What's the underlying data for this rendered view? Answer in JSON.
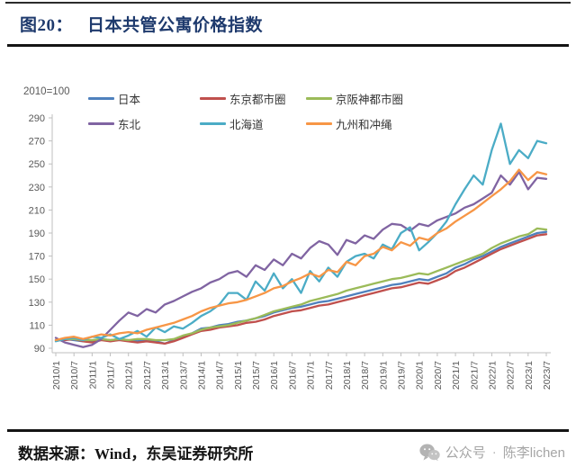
{
  "header": {
    "title_prefix": "图20：",
    "title": "日本共管公寓价格指数"
  },
  "footer": {
    "source": "数据来源：Wind，东吴证券研究所",
    "wechat_label": "公众号",
    "separator": "·",
    "account": "陈李lichen"
  },
  "colors": {
    "title": "#1e3a6d",
    "divider": "#141414",
    "axis": "#bfbfbf",
    "tick_label": "#595959",
    "footer_text": "#141414",
    "wechat_gray": "#a6a6a6"
  },
  "chart_data": {
    "type": "line",
    "title": "",
    "unit_label": "2010=100",
    "xlabel": "",
    "ylabel": "",
    "ylim": [
      90,
      290
    ],
    "yticks": [
      290,
      270,
      250,
      230,
      210,
      190,
      170,
      150,
      130,
      110,
      90
    ],
    "grid": false,
    "legend_position": "top",
    "xtick_labels": [
      "2010/1",
      "2010/7",
      "2011/1",
      "2011/7",
      "2012/1",
      "2012/7",
      "2013/1",
      "2013/7",
      "2014/1",
      "2014/7",
      "2015/1",
      "2015/7",
      "2016/1",
      "2016/7",
      "2017/1",
      "2017/7",
      "2018/1",
      "2018/7",
      "2019/1",
      "2019/7",
      "2020/1",
      "2020/7",
      "2021/1",
      "2021/7",
      "2022/1",
      "2022/7",
      "2023/1",
      "2023/7"
    ],
    "dates": [
      "2010/1",
      "2010/4",
      "2010/7",
      "2010/10",
      "2011/1",
      "2011/4",
      "2011/7",
      "2011/10",
      "2012/1",
      "2012/4",
      "2012/7",
      "2012/10",
      "2013/1",
      "2013/4",
      "2013/7",
      "2013/10",
      "2014/1",
      "2014/4",
      "2014/7",
      "2014/10",
      "2015/1",
      "2015/4",
      "2015/7",
      "2015/10",
      "2016/1",
      "2016/4",
      "2016/7",
      "2016/10",
      "2017/1",
      "2017/4",
      "2017/7",
      "2017/10",
      "2018/1",
      "2018/4",
      "2018/7",
      "2018/10",
      "2019/1",
      "2019/4",
      "2019/7",
      "2019/10",
      "2020/1",
      "2020/4",
      "2020/7",
      "2020/10",
      "2021/1",
      "2021/4",
      "2021/7",
      "2021/10",
      "2022/1",
      "2022/4",
      "2022/7",
      "2022/10",
      "2023/1",
      "2023/4",
      "2023/7"
    ],
    "series": [
      {
        "name": "日本",
        "color": "#4F81BD",
        "values": [
          97,
          98,
          97,
          96,
          96,
          98,
          97,
          98,
          97,
          96,
          97,
          96,
          94,
          97,
          100,
          103,
          107,
          108,
          110,
          111,
          113,
          114,
          116,
          118,
          121,
          123,
          125,
          126,
          128,
          130,
          131,
          133,
          135,
          137,
          139,
          141,
          143,
          145,
          146,
          148,
          150,
          149,
          152,
          155,
          160,
          163,
          167,
          170,
          174,
          178,
          181,
          184,
          187,
          190,
          191
        ]
      },
      {
        "name": "东京都市圈",
        "color": "#C0504D",
        "values": [
          97,
          97,
          98,
          96,
          95,
          97,
          96,
          97,
          96,
          95,
          96,
          95,
          94,
          96,
          99,
          102,
          105,
          106,
          108,
          109,
          110,
          112,
          113,
          115,
          118,
          120,
          122,
          123,
          125,
          127,
          128,
          130,
          132,
          134,
          136,
          138,
          140,
          142,
          143,
          145,
          147,
          146,
          149,
          152,
          157,
          160,
          164,
          168,
          172,
          176,
          179,
          182,
          185,
          188,
          189
        ]
      },
      {
        "name": "京阪神都市圈",
        "color": "#9BBB59",
        "values": [
          97,
          98,
          98,
          97,
          97,
          98,
          97,
          98,
          97,
          98,
          98,
          97,
          97,
          98,
          101,
          103,
          106,
          108,
          109,
          110,
          112,
          114,
          116,
          119,
          122,
          124,
          126,
          128,
          131,
          133,
          135,
          137,
          140,
          142,
          144,
          146,
          148,
          150,
          151,
          153,
          155,
          154,
          157,
          160,
          163,
          166,
          169,
          172,
          177,
          181,
          184,
          187,
          189,
          194,
          193
        ]
      },
      {
        "name": "东北",
        "color": "#8064A2",
        "values": [
          99,
          95,
          93,
          91,
          93,
          98,
          106,
          114,
          121,
          118,
          124,
          121,
          128,
          131,
          135,
          139,
          142,
          147,
          150,
          155,
          157,
          152,
          162,
          158,
          167,
          162,
          172,
          168,
          177,
          183,
          180,
          171,
          184,
          181,
          188,
          185,
          193,
          198,
          197,
          192,
          198,
          196,
          201,
          204,
          207,
          212,
          215,
          220,
          225,
          240,
          232,
          243,
          228,
          238,
          237
        ]
      },
      {
        "name": "北海道",
        "color": "#4BACC6",
        "values": [
          96,
          98,
          99,
          97,
          100,
          99,
          102,
          98,
          101,
          105,
          100,
          108,
          104,
          109,
          107,
          112,
          118,
          122,
          128,
          138,
          138,
          132,
          148,
          140,
          155,
          142,
          150,
          138,
          157,
          148,
          160,
          152,
          165,
          170,
          172,
          168,
          180,
          176,
          190,
          195,
          175,
          182,
          190,
          200,
          215,
          228,
          240,
          232,
          262,
          285,
          250,
          262,
          255,
          270,
          268
        ]
      },
      {
        "name": "九州和冲绳",
        "color": "#F79646",
        "values": [
          97,
          99,
          100,
          98,
          100,
          102,
          101,
          103,
          104,
          103,
          106,
          108,
          110,
          112,
          115,
          118,
          122,
          125,
          127,
          129,
          130,
          132,
          135,
          138,
          142,
          144,
          148,
          151,
          155,
          152,
          158,
          156,
          165,
          162,
          170,
          172,
          178,
          175,
          182,
          179,
          186,
          184,
          190,
          194,
          200,
          205,
          210,
          216,
          222,
          228,
          235,
          245,
          236,
          243,
          241
        ]
      }
    ]
  }
}
